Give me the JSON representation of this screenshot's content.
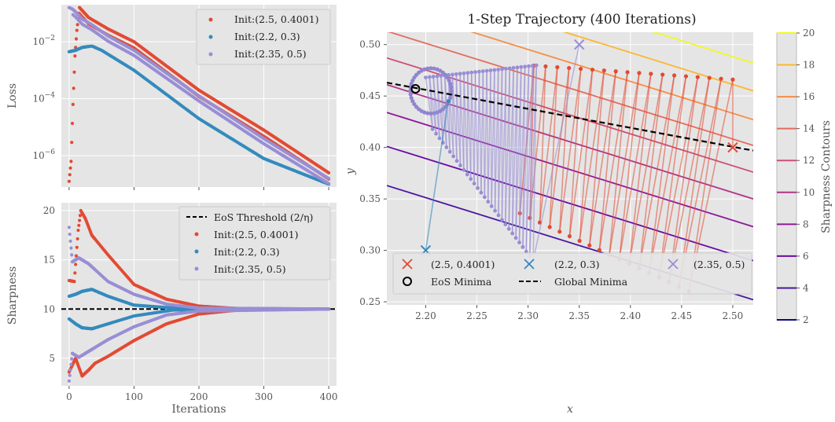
{
  "colors": {
    "red": "#E24A33",
    "blue": "#348ABD",
    "purple": "#988ED5",
    "panel": "#E5E5E5",
    "grid": "#FFFFFF"
  },
  "chart_data": [
    {
      "type": "scatter",
      "title": "",
      "xlabel": "",
      "ylabel": "Loss",
      "yscale": "log",
      "xlim": [
        -12,
        412
      ],
      "ylim_exp": [
        -7.1,
        -0.7
      ],
      "xticks": [
        0,
        100,
        200,
        300,
        400
      ],
      "yticks": [
        {
          "exp": -2,
          "label": "10",
          "sup": "−2"
        },
        {
          "exp": -4,
          "label": "10",
          "sup": "−4"
        },
        {
          "exp": -6,
          "label": "10",
          "sup": "−6"
        }
      ],
      "legend_position": "top-right",
      "grid": true,
      "series": [
        {
          "name": "Init:(2.5, 0.4001)",
          "color": "#E24A33",
          "loss_log10": [
            [
              0,
              -6.9
            ],
            [
              3,
              -6.2
            ],
            [
              6,
              -4.2
            ],
            [
              9,
              -2.5
            ],
            [
              12,
              -1.6
            ],
            [
              16,
              -0.8
            ],
            [
              20,
              -0.9
            ],
            [
              30,
              -1.15
            ],
            [
              60,
              -1.55
            ],
            [
              100,
              -2.0
            ],
            [
              200,
              -3.7
            ],
            [
              300,
              -5.1
            ],
            [
              400,
              -6.6
            ]
          ]
        },
        {
          "name": "Init:(2.2, 0.3)",
          "color": "#348ABD",
          "loss_log10": [
            [
              0,
              -2.35
            ],
            [
              10,
              -2.3
            ],
            [
              20,
              -2.2
            ],
            [
              35,
              -2.15
            ],
            [
              50,
              -2.3
            ],
            [
              100,
              -3.0
            ],
            [
              200,
              -4.7
            ],
            [
              300,
              -6.1
            ],
            [
              400,
              -7.0
            ]
          ]
        },
        {
          "name": "Init:(2.35, 0.5)",
          "color": "#988ED5",
          "loss_log10": [
            [
              0,
              -0.8
            ],
            [
              5,
              -0.85
            ],
            [
              10,
              -0.95
            ],
            [
              20,
              -1.2
            ],
            [
              35,
              -1.4
            ],
            [
              60,
              -1.8
            ],
            [
              100,
              -2.3
            ],
            [
              200,
              -3.9
            ],
            [
              300,
              -5.4
            ],
            [
              400,
              -6.8
            ]
          ]
        }
      ]
    },
    {
      "type": "scatter",
      "title": "",
      "xlabel": "Iterations",
      "ylabel": "Sharpness",
      "xlim": [
        -12,
        412
      ],
      "ylim": [
        2.2,
        20.8
      ],
      "xticks": [
        0,
        100,
        200,
        300,
        400
      ],
      "yticks": [
        5,
        10,
        15,
        20
      ],
      "threshold": 10,
      "legend_position": "top-right",
      "legend": [
        {
          "label": "EoS Threshold (2/η)",
          "style": "dashed-line",
          "color": "#000000"
        },
        {
          "label": "Init:(2.5, 0.4001)",
          "style": "dot",
          "color": "#E24A33"
        },
        {
          "label": "Init:(2.2, 0.3)",
          "style": "dot",
          "color": "#348ABD"
        },
        {
          "label": "Init:(2.35, 0.5)",
          "style": "dot",
          "color": "#988ED5"
        }
      ],
      "grid": true,
      "series": [
        {
          "name": "Init:(2.5, 0.4001)",
          "color": "#E24A33",
          "upper": [
            [
              0,
              12.9
            ],
            [
              8,
              12.8
            ],
            [
              14,
              18
            ],
            [
              18,
              20
            ],
            [
              25,
              19.2
            ],
            [
              35,
              17.5
            ],
            [
              60,
              15.5
            ],
            [
              100,
              12.5
            ],
            [
              150,
              11
            ],
            [
              200,
              10.3
            ],
            [
              260,
              10.05
            ],
            [
              400,
              10
            ]
          ],
          "lower": [
            [
              0,
              3.6
            ],
            [
              10,
              5
            ],
            [
              20,
              3.2
            ],
            [
              30,
              3.8
            ],
            [
              40,
              4.5
            ],
            [
              60,
              5.2
            ],
            [
              100,
              6.8
            ],
            [
              150,
              8.5
            ],
            [
              200,
              9.5
            ],
            [
              260,
              9.9
            ],
            [
              400,
              10
            ]
          ]
        },
        {
          "name": "Init:(2.2, 0.3)",
          "color": "#348ABD",
          "upper": [
            [
              0,
              11.3
            ],
            [
              10,
              11.5
            ],
            [
              20,
              11.8
            ],
            [
              35,
              12.0
            ],
            [
              60,
              11.3
            ],
            [
              100,
              10.4
            ],
            [
              160,
              10.1
            ],
            [
              400,
              10
            ]
          ],
          "lower": [
            [
              0,
              9.0
            ],
            [
              10,
              8.5
            ],
            [
              20,
              8.1
            ],
            [
              35,
              8.0
            ],
            [
              60,
              8.5
            ],
            [
              100,
              9.3
            ],
            [
              160,
              9.9
            ],
            [
              400,
              10
            ]
          ]
        },
        {
          "name": "Init:(2.35, 0.5)",
          "color": "#988ED5",
          "upper": [
            [
              0,
              18.3
            ],
            [
              5,
              14.8
            ],
            [
              15,
              15.2
            ],
            [
              30,
              14.6
            ],
            [
              60,
              12.8
            ],
            [
              100,
              11.5
            ],
            [
              150,
              10.5
            ],
            [
              200,
              10.1
            ],
            [
              400,
              10
            ]
          ],
          "lower": [
            [
              0,
              2.7
            ],
            [
              5,
              5.5
            ],
            [
              15,
              5.1
            ],
            [
              30,
              5.7
            ],
            [
              60,
              6.9
            ],
            [
              100,
              8.2
            ],
            [
              150,
              9.4
            ],
            [
              200,
              9.8
            ],
            [
              400,
              10
            ]
          ]
        }
      ]
    },
    {
      "type": "scatter",
      "title": "1-Step Trajectory (400 Iterations)",
      "xlabel": "x",
      "ylabel": "y",
      "xlim": [
        2.162,
        2.52
      ],
      "ylim": [
        0.247,
        0.512
      ],
      "xticks": [
        2.2,
        2.25,
        2.3,
        2.35,
        2.4,
        2.45,
        2.5
      ],
      "yticks": [
        0.25,
        0.3,
        0.35,
        0.4,
        0.45,
        0.5
      ],
      "grid": true,
      "global_minima_line": [
        [
          2.162,
          0.463
        ],
        [
          2.52,
          0.397
        ]
      ],
      "eos_minima": [
        2.19,
        0.457
      ],
      "inits": [
        {
          "label": "(2.5, 0.4001)",
          "x": 2.5,
          "y": 0.4001,
          "color": "#E24A33"
        },
        {
          "label": "(2.2, 0.3)",
          "x": 2.2,
          "y": 0.3,
          "color": "#348ABD"
        },
        {
          "label": "(2.35, 0.5)",
          "x": 2.35,
          "y": 0.5,
          "color": "#988ED5"
        }
      ],
      "legend": [
        {
          "label": "(2.5, 0.4001)",
          "marker": "x",
          "color": "#E24A33"
        },
        {
          "label": "(2.2, 0.3)",
          "marker": "x",
          "color": "#348ABD"
        },
        {
          "label": "(2.35, 0.5)",
          "marker": "x",
          "color": "#988ED5"
        },
        {
          "label": "EoS Minima",
          "marker": "ring",
          "color": "#000000"
        },
        {
          "label": "Global Minima",
          "marker": "dashed-line",
          "color": "#000000"
        }
      ],
      "legend_position": "bottom",
      "contours": [
        {
          "level": 4,
          "color": "#4a16a0",
          "y_at_left": 0.363
        },
        {
          "level": 6,
          "color": "#6a0aa5",
          "y_at_left": 0.401
        },
        {
          "level": 8,
          "color": "#8f1a9c",
          "y_at_left": 0.434
        },
        {
          "level": 10,
          "color": "#b0358a",
          "y_at_left": 0.461
        },
        {
          "level": 12,
          "color": "#cc4f74",
          "y_at_left": 0.487
        },
        {
          "level": 14,
          "color": "#e56b5d",
          "y_at_left": 0.513
        },
        {
          "level": 16,
          "color": "#f68d45",
          "y_at_left": 0.538
        },
        {
          "level": 18,
          "color": "#fcb72e",
          "y_at_left": 0.566
        },
        {
          "level": 20,
          "color": "#f0f921",
          "y_at_left": 0.593
        }
      ],
      "contour_slope": -0.62,
      "colorbar": {
        "label": "Sharpness Contours",
        "range": [
          2,
          20
        ],
        "ticks": [
          2,
          4,
          6,
          8,
          10,
          12,
          14,
          16,
          18,
          20
        ],
        "colors": [
          "#0d0887",
          "#4a16a0",
          "#6a0aa5",
          "#8f1a9c",
          "#b0358a",
          "#cc4f74",
          "#e56b5d",
          "#f68d45",
          "#fcb72e",
          "#f0f921"
        ]
      }
    }
  ]
}
